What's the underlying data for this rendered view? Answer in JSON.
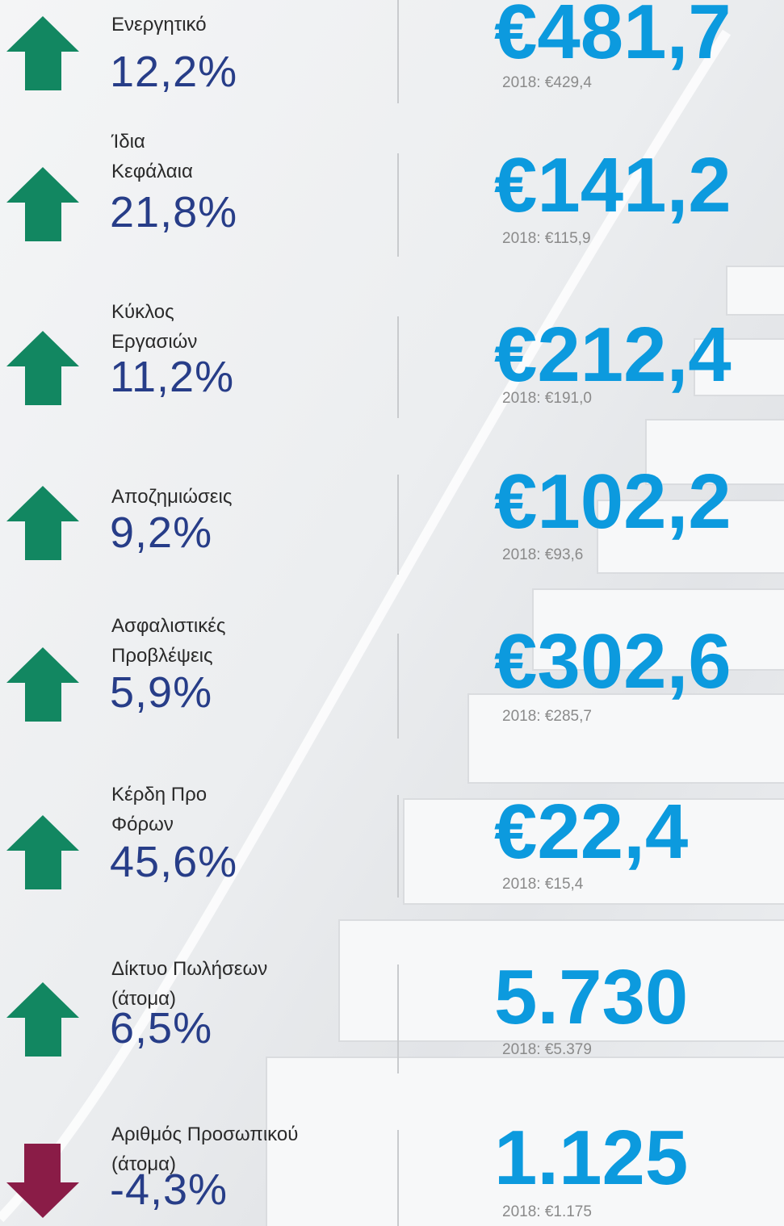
{
  "items": [
    {
      "label": [
        "Ενεργητικό"
      ],
      "change": "12,2%",
      "value": "€481,7",
      "previous": "2018: €429,4",
      "direction": "up"
    },
    {
      "label": [
        "Ίδια",
        "Κεφάλαια"
      ],
      "change": "21,8%",
      "value": "€141,2",
      "previous": "2018: €115,9",
      "direction": "up"
    },
    {
      "label": [
        "Κύκλος",
        "Εργασιών"
      ],
      "change": "11,2%",
      "value": "€212,4",
      "previous": "2018: €191,0",
      "direction": "up"
    },
    {
      "label": [
        "Αποζημιώσεις"
      ],
      "change": "9,2%",
      "value": "€102,2",
      "previous": "2018: €93,6",
      "direction": "up"
    },
    {
      "label": [
        "Ασφαλιστικές",
        "Προβλέψεις"
      ],
      "change": "5,9%",
      "value": "€302,6",
      "previous": "2018: €285,7",
      "direction": "up"
    },
    {
      "label": [
        "Κέρδη Προ",
        "Φόρων"
      ],
      "change": "45,6%",
      "value": "€22,4",
      "previous": "2018: €15,4",
      "direction": "up"
    },
    {
      "label": [
        "Δίκτυο Πωλήσεων",
        "(άτομα)"
      ],
      "change": "6,5%",
      "value": "5.730",
      "previous": "2018: €5.379",
      "direction": "up"
    },
    {
      "label": [
        "Αριθμός Προσωπικού",
        "(άτομα)"
      ],
      "change": "-4,3%",
      "value": "1.125",
      "previous": "2018: €1.175",
      "direction": "down"
    }
  ],
  "colors": {
    "up": "#128761",
    "down": "#8a1c47"
  }
}
